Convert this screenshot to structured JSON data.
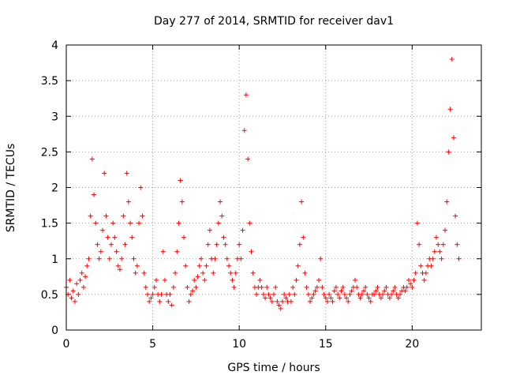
{
  "chart_data": {
    "type": "scatter",
    "title": "Day 277 of 2014, SRMTID for receiver dav1",
    "xlabel": "GPS time / hours",
    "ylabel": "SRMTID / TECUs",
    "xlim": [
      0,
      24
    ],
    "ylim": [
      0,
      4
    ],
    "xticks": [
      0,
      5,
      10,
      15,
      20
    ],
    "xtick_labels": [
      "0",
      "5",
      "10",
      "15",
      "20"
    ],
    "yticks": [
      0,
      0.5,
      1,
      1.5,
      2,
      2.5,
      3,
      3.5,
      4
    ],
    "ytick_labels": [
      "0",
      "0.5",
      "1",
      "1.5",
      "2",
      "2.5",
      "3",
      "3.5",
      "4"
    ],
    "grid": true,
    "marker": "plus",
    "color": "#ff0000",
    "series": [
      {
        "name": "dav1",
        "x": [
          0.0,
          0.1,
          0.2,
          0.3,
          0.4,
          0.5,
          0.6,
          0.7,
          0.8,
          0.9,
          1.0,
          1.1,
          1.2,
          1.3,
          1.4,
          1.5,
          1.6,
          1.7,
          1.8,
          1.9,
          2.0,
          2.1,
          2.2,
          2.3,
          2.4,
          2.5,
          2.6,
          2.7,
          2.8,
          2.9,
          3.0,
          3.1,
          3.2,
          3.3,
          3.4,
          3.5,
          3.6,
          3.7,
          3.8,
          3.9,
          4.0,
          4.1,
          4.2,
          4.3,
          4.4,
          4.5,
          4.6,
          4.7,
          4.8,
          4.9,
          5.0,
          5.1,
          5.2,
          5.3,
          5.4,
          5.5,
          5.6,
          5.7,
          5.8,
          5.9,
          6.0,
          6.1,
          6.2,
          6.3,
          6.4,
          6.5,
          6.6,
          6.7,
          6.8,
          6.9,
          7.0,
          7.1,
          7.2,
          7.3,
          7.4,
          7.5,
          7.6,
          7.7,
          7.8,
          7.9,
          8.0,
          8.1,
          8.2,
          8.3,
          8.4,
          8.5,
          8.6,
          8.7,
          8.8,
          8.9,
          9.0,
          9.1,
          9.2,
          9.3,
          9.4,
          9.5,
          9.6,
          9.7,
          9.8,
          9.9,
          10.0,
          10.1,
          10.2,
          10.3,
          10.4,
          10.5,
          10.6,
          10.7,
          10.8,
          10.9,
          11.0,
          11.1,
          11.2,
          11.3,
          11.4,
          11.5,
          11.6,
          11.7,
          11.8,
          11.9,
          12.0,
          12.1,
          12.2,
          12.3,
          12.4,
          12.5,
          12.6,
          12.7,
          12.8,
          12.9,
          13.0,
          13.1,
          13.2,
          13.3,
          13.4,
          13.5,
          13.6,
          13.7,
          13.8,
          13.9,
          14.0,
          14.1,
          14.2,
          14.3,
          14.4,
          14.5,
          14.6,
          14.7,
          14.8,
          14.9,
          15.0,
          15.1,
          15.2,
          15.3,
          15.4,
          15.5,
          15.6,
          15.7,
          15.8,
          15.9,
          16.0,
          16.1,
          16.2,
          16.3,
          16.4,
          16.5,
          16.6,
          16.7,
          16.8,
          16.9,
          17.0,
          17.1,
          17.2,
          17.3,
          17.4,
          17.5,
          17.6,
          17.7,
          17.8,
          17.9,
          18.0,
          18.1,
          18.2,
          18.3,
          18.4,
          18.5,
          18.6,
          18.7,
          18.8,
          18.9,
          19.0,
          19.1,
          19.2,
          19.3,
          19.4,
          19.5,
          19.6,
          19.7,
          19.8,
          19.9,
          20.0,
          20.1,
          20.2,
          20.3,
          20.4,
          20.5,
          20.6,
          20.7,
          20.8,
          20.9,
          21.0,
          21.1,
          21.2,
          21.3,
          21.4,
          21.5,
          21.6,
          21.7,
          21.8,
          21.9,
          22.0,
          22.1,
          22.2,
          22.3,
          22.4,
          22.5,
          22.6,
          22.7
        ],
        "y": [
          0.6,
          0.5,
          0.7,
          0.45,
          0.55,
          0.4,
          0.65,
          0.5,
          0.7,
          0.8,
          0.6,
          0.75,
          0.9,
          1.0,
          1.6,
          2.4,
          1.9,
          1.5,
          1.2,
          1.0,
          1.1,
          1.4,
          2.2,
          1.6,
          1.3,
          1.0,
          1.2,
          1.5,
          1.3,
          1.1,
          0.9,
          0.85,
          1.0,
          1.6,
          1.2,
          2.2,
          1.8,
          1.5,
          1.3,
          1.0,
          0.8,
          0.9,
          1.5,
          2.0,
          1.6,
          0.8,
          0.6,
          0.5,
          0.4,
          0.45,
          0.5,
          0.6,
          0.7,
          0.5,
          0.4,
          0.5,
          1.1,
          0.7,
          0.5,
          0.4,
          0.5,
          0.35,
          0.6,
          0.8,
          1.1,
          1.5,
          2.1,
          1.8,
          1.3,
          0.9,
          0.6,
          0.4,
          0.5,
          0.55,
          0.7,
          0.6,
          0.75,
          0.9,
          1.0,
          0.8,
          0.7,
          0.9,
          1.2,
          1.4,
          1.0,
          0.8,
          1.0,
          1.2,
          1.5,
          1.8,
          1.6,
          1.3,
          1.2,
          1.0,
          0.9,
          0.8,
          0.7,
          0.6,
          0.8,
          1.0,
          1.2,
          1.0,
          1.4,
          2.8,
          3.3,
          2.4,
          1.5,
          1.1,
          0.8,
          0.6,
          0.5,
          0.6,
          0.7,
          0.6,
          0.5,
          0.45,
          0.6,
          0.5,
          0.45,
          0.4,
          0.5,
          0.6,
          0.4,
          0.35,
          0.3,
          0.4,
          0.5,
          0.45,
          0.4,
          0.5,
          0.4,
          0.6,
          0.5,
          0.7,
          0.9,
          1.2,
          1.8,
          1.3,
          0.8,
          0.6,
          0.5,
          0.4,
          0.45,
          0.5,
          0.55,
          0.6,
          0.7,
          1.0,
          0.6,
          0.5,
          0.45,
          0.4,
          0.5,
          0.45,
          0.4,
          0.55,
          0.6,
          0.5,
          0.45,
          0.55,
          0.6,
          0.5,
          0.45,
          0.4,
          0.5,
          0.55,
          0.6,
          0.7,
          0.6,
          0.5,
          0.45,
          0.5,
          0.55,
          0.6,
          0.5,
          0.45,
          0.4,
          0.5,
          0.5,
          0.55,
          0.6,
          0.5,
          0.45,
          0.5,
          0.55,
          0.6,
          0.5,
          0.45,
          0.5,
          0.55,
          0.6,
          0.5,
          0.45,
          0.5,
          0.55,
          0.6,
          0.55,
          0.6,
          0.7,
          0.65,
          0.6,
          0.7,
          0.8,
          1.5,
          1.2,
          0.9,
          0.8,
          0.7,
          0.8,
          0.9,
          1.0,
          0.9,
          1.0,
          1.1,
          1.3,
          1.2,
          1.1,
          1.0,
          1.2,
          1.4,
          1.8,
          2.5,
          3.1,
          3.8,
          2.7,
          1.6,
          1.2,
          1.0
        ]
      }
    ]
  }
}
